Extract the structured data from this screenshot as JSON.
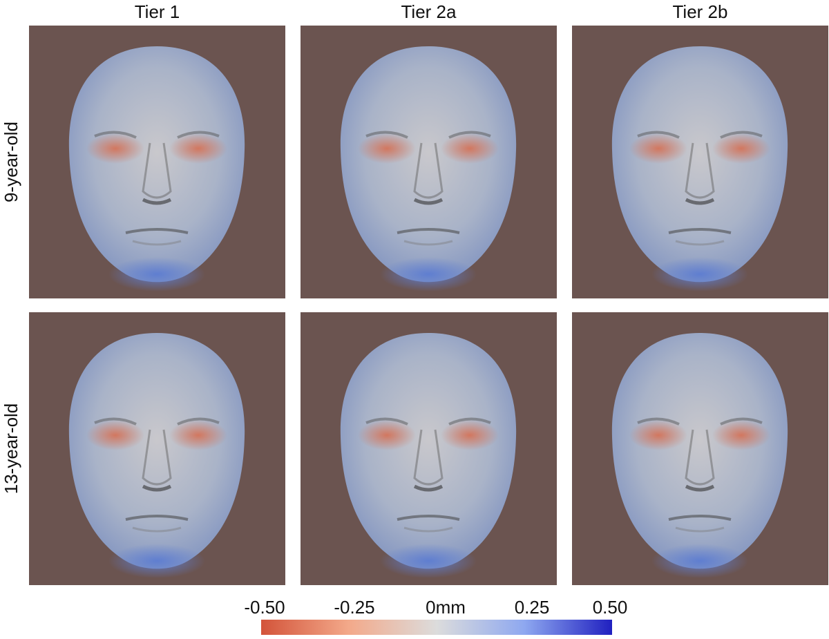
{
  "columns": [
    "Tier 1",
    "Tier 2a",
    "Tier 2b"
  ],
  "rows": [
    "9-year-old",
    "13-year-old"
  ],
  "colorbar": {
    "ticks": [
      "-0.50",
      "-0.25",
      "0mm",
      "0.25",
      "0.50"
    ]
  }
}
